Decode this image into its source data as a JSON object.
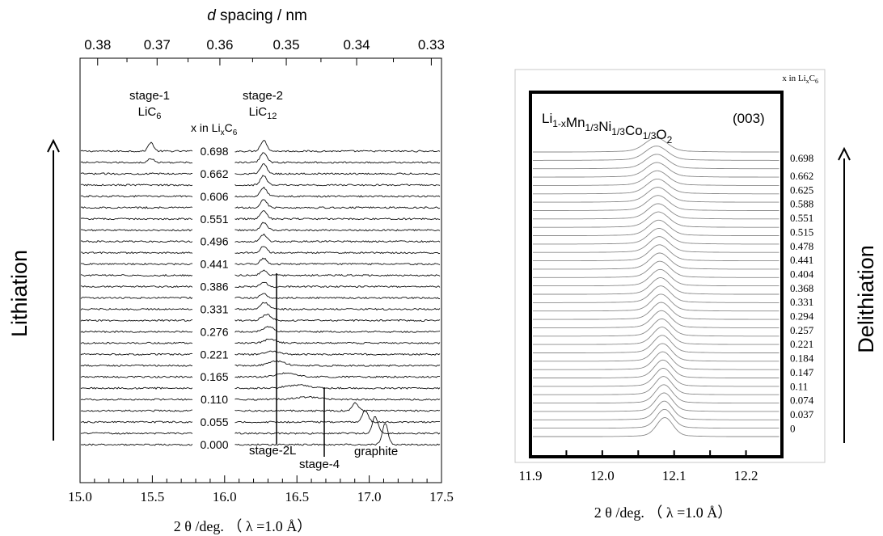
{
  "chart_data": [
    {
      "type": "line",
      "title": "",
      "top_axis": {
        "label_italic": "d",
        "label_rest": " spacing / nm",
        "ticks": [
          "0.38",
          "0.37",
          "0.36",
          "0.35",
          "0.34",
          "0.33"
        ]
      },
      "xlabel": "2 θ /deg. （ λ =1.0 Å）",
      "ylabel": "Lithiation",
      "xlim": [
        15.0,
        17.5
      ],
      "x_ticks": [
        "15.0",
        "15.5",
        "16.0",
        "16.5",
        "17.0",
        "17.5"
      ],
      "series_header": {
        "prefix": "x in Li",
        "sub1": "x",
        "mid": "C",
        "sub2": "6"
      },
      "series_labels": [
        "0.698",
        "0.662",
        "0.606",
        "0.551",
        "0.496",
        "0.441",
        "0.386",
        "0.331",
        "0.276",
        "0.221",
        "0.165",
        "0.110",
        "0.055",
        "0.000"
      ],
      "annotations": {
        "stage1": {
          "line1": "stage-1",
          "base": "LiC",
          "sub": "6"
        },
        "stage2": {
          "line1": "stage-2",
          "base": "LiC",
          "sub": "12"
        },
        "stage2L": "stage-2L",
        "stage4": "stage-4",
        "graphite": "graphite"
      }
    },
    {
      "type": "line",
      "title": "",
      "compound": [
        {
          "t": "Li",
          "s": ""
        },
        {
          "t": "",
          "s": "1-x"
        },
        {
          "t": "Mn",
          "s": ""
        },
        {
          "t": "",
          "s": "1/3"
        },
        {
          "t": "Ni",
          "s": ""
        },
        {
          "t": "",
          "s": "1/3"
        },
        {
          "t": "Co",
          "s": ""
        },
        {
          "t": "",
          "s": "1/3"
        },
        {
          "t": "O",
          "s": ""
        },
        {
          "t": "",
          "s": "2"
        }
      ],
      "reflection": "(003)",
      "xlabel": "2 θ /deg. （ λ =1.0 Å）",
      "ylabel": "Delithiation",
      "xlim": [
        11.9,
        12.25
      ],
      "x_ticks": [
        "11.9",
        "12.0",
        "12.1",
        "12.2"
      ],
      "series_header": {
        "prefix": "x in Li",
        "sub1": "x",
        "mid": "C",
        "sub2": "6"
      },
      "series_labels": [
        "0.698",
        "0.662",
        "0.625",
        "0.588",
        "0.551",
        "0.515",
        "0.478",
        "0.441",
        "0.404",
        "0.368",
        "0.331",
        "0.294",
        "0.257",
        "0.221",
        "0.184",
        "0.147",
        "0.11",
        "0.074",
        "0.037",
        "0"
      ],
      "peak_position_range": [
        12.075,
        12.09
      ]
    }
  ]
}
